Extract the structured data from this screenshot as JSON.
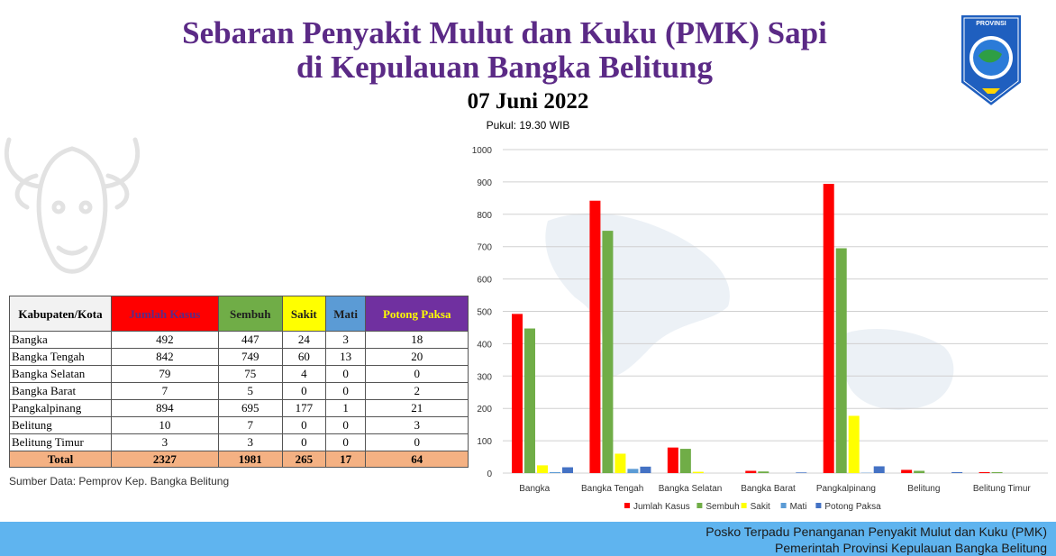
{
  "header": {
    "title_line1": "Sebaran Penyakit Mulut dan Kuku (PMK) Sapi",
    "title_line2": "di Kepulauan Bangka Belitung",
    "date": "07 Juni 2022",
    "time": "Pukul: 19.30 WIB"
  },
  "logo": {
    "top_text": "PROVINSI",
    "icon": "province-shield-emblem"
  },
  "table": {
    "headers": [
      "Kabupaten/Kota",
      "Jumlah Kasus",
      "Sembuh",
      "Sakit",
      "Mati",
      "Potong Paksa"
    ],
    "rows": [
      [
        "Bangka",
        "492",
        "447",
        "24",
        "3",
        "18"
      ],
      [
        "Bangka Tengah",
        "842",
        "749",
        "60",
        "13",
        "20"
      ],
      [
        "Bangka Selatan",
        "79",
        "75",
        "4",
        "0",
        "0"
      ],
      [
        "Bangka Barat",
        "7",
        "5",
        "0",
        "0",
        "2"
      ],
      [
        "Pangkalpinang",
        "894",
        "695",
        "177",
        "1",
        "21"
      ],
      [
        "Belitung",
        "10",
        "7",
        "0",
        "0",
        "3"
      ],
      [
        "Belitung Timur",
        "3",
        "3",
        "0",
        "0",
        "0"
      ]
    ],
    "total": [
      "Total",
      "2327",
      "1981",
      "265",
      "17",
      "64"
    ],
    "source": "Sumber Data: Pemprov Kep. Bangka Belitung"
  },
  "chart_data": {
    "type": "bar",
    "categories": [
      "Bangka",
      "Bangka Tengah",
      "Bangka Selatan",
      "Bangka Barat",
      "Pangkalpinang",
      "Belitung",
      "Belitung Timur"
    ],
    "series": [
      {
        "name": "Jumlah Kasus",
        "color": "#ff0000",
        "values": [
          492,
          842,
          79,
          7,
          894,
          10,
          3
        ]
      },
      {
        "name": "Sembuh",
        "color": "#70ad47",
        "values": [
          447,
          749,
          75,
          5,
          695,
          7,
          3
        ]
      },
      {
        "name": "Sakit",
        "color": "#ffff00",
        "values": [
          24,
          60,
          4,
          0,
          177,
          0,
          0
        ]
      },
      {
        "name": "Mati",
        "color": "#5b9bd5",
        "values": [
          3,
          13,
          0,
          0,
          1,
          0,
          0
        ]
      },
      {
        "name": "Potong Paksa",
        "color": "#4472c4",
        "values": [
          18,
          20,
          0,
          2,
          21,
          3,
          0
        ]
      }
    ],
    "ylim": [
      0,
      1000
    ],
    "yticks": [
      0,
      100,
      200,
      300,
      400,
      500,
      600,
      700,
      800,
      900,
      1000
    ],
    "grid": true,
    "legend": "bottom"
  },
  "footer": {
    "line1": "Posko Terpadu Penanganan Penyakit Mulut dan Kuku (PMK)",
    "line2": "Pemerintah Provinsi Kepulauan Bangka Belitung"
  }
}
